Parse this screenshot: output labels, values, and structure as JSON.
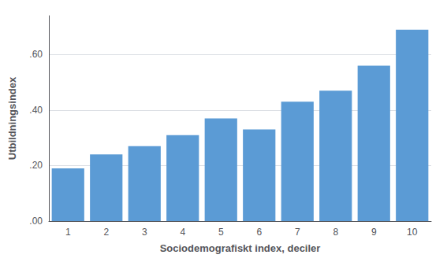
{
  "chart_data": {
    "type": "bar",
    "categories": [
      1,
      2,
      3,
      4,
      5,
      6,
      7,
      8,
      9,
      10
    ],
    "values": [
      0.19,
      0.24,
      0.27,
      0.31,
      0.37,
      0.33,
      0.43,
      0.47,
      0.56,
      0.69
    ],
    "color": "#5B9BD5",
    "xlabel": "Sociodemografiskt index, deciler",
    "ylabel": "Utbildningsindex",
    "ylim": [
      0.0,
      0.74
    ],
    "yticks": [
      {
        "value": 0.0,
        "label": ".00"
      },
      {
        "value": 0.2,
        "label": ".20"
      },
      {
        "value": 0.4,
        "label": ".40"
      },
      {
        "value": 0.6,
        "label": ".60"
      }
    ],
    "grid": true
  }
}
